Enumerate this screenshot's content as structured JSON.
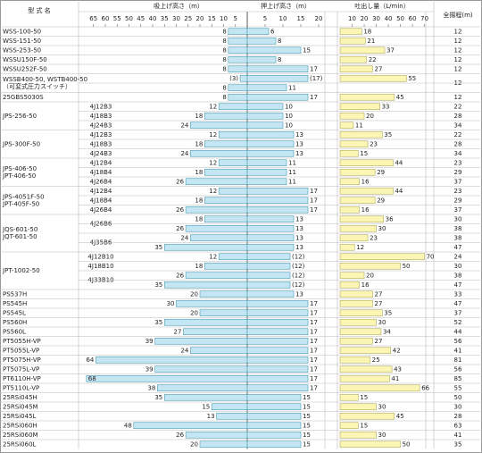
{
  "header": {
    "model": "型 式 名",
    "suction": "吸上げ高さ（m）",
    "push": "押上げ高さ（m）",
    "discharge": "吐出し量（L/min）",
    "total": "全揚程(m)"
  },
  "suction_lim": [
    0,
    70
  ],
  "suction_ticks": [
    65,
    60,
    55,
    50,
    45,
    40,
    35,
    30,
    25,
    20,
    15,
    10,
    5
  ],
  "push_lim": [
    0,
    21
  ],
  "push_ticks": [
    5,
    10,
    15,
    20
  ],
  "discharge_lim": [
    0,
    74
  ],
  "discharge_ticks": [
    10,
    20,
    30,
    40,
    50,
    60,
    70
  ],
  "rows": [
    {
      "model": [
        "WSS-100-50"
      ],
      "suction": 8,
      "push": 6,
      "discharge": 18,
      "total": 12
    },
    {
      "model": [
        "WSS-151-50"
      ],
      "suction": 8,
      "push": 8,
      "discharge": 21,
      "total": 12
    },
    {
      "model": [
        "WSS-253-50"
      ],
      "suction": 8,
      "push": 15,
      "discharge": 37,
      "total": 12
    },
    {
      "model": [
        "WSSU150F-50"
      ],
      "suction": 8,
      "push": 8,
      "discharge": 22,
      "total": 12
    },
    {
      "model": [
        "WSSU252F-50"
      ],
      "suction": 8,
      "push": 17,
      "discharge": 27,
      "total": 12
    },
    {
      "model": [
        "WSSB400-50, WSTB400-50",
        "（可変式圧力スイッチ）"
      ],
      "suction": 3,
      "suction_label": "(3)",
      "push": 17,
      "push_label": "(17)",
      "discharge": 55,
      "total": 12
    },
    {
      "suction": 8,
      "push": 11
    },
    {
      "model": [
        "25GBS5030S"
      ],
      "suction": 8,
      "push": 17,
      "discharge": 45,
      "total": 12
    },
    {
      "model": [
        "JPS-256-50"
      ],
      "sub": "4J12B3",
      "suction": 12,
      "push": 10,
      "discharge": 33,
      "total": 22
    },
    {
      "sub": "4J18B3",
      "suction": 18,
      "push": 10,
      "discharge": 20,
      "total": 28
    },
    {
      "sub": "4J24B3",
      "suction": 24,
      "push": 10,
      "discharge": 11,
      "total": 34
    },
    {
      "model": [
        "JPS-300F-50"
      ],
      "sub": "4J12B3",
      "suction": 12,
      "push": 13,
      "discharge": 35,
      "total": 22
    },
    {
      "sub": "4J18B3",
      "suction": 18,
      "push": 13,
      "discharge": 23,
      "total": 28
    },
    {
      "sub": "4J24B3",
      "suction": 24,
      "push": 13,
      "discharge": 15,
      "total": 34
    },
    {
      "model": [
        "JPS-406-50",
        "JPT-406-50"
      ],
      "sub": "4J12B4",
      "suction": 12,
      "push": 11,
      "discharge": 44,
      "total": 23
    },
    {
      "sub": "4J18B4",
      "suction": 18,
      "push": 11,
      "discharge": 29,
      "total": 29
    },
    {
      "sub": "4J26B4",
      "suction": 26,
      "push": 11,
      "discharge": 16,
      "total": 37
    },
    {
      "model": [
        "JPS-4051F-50",
        "JPT-405F-50"
      ],
      "sub": "4J12B4",
      "suction": 12,
      "push": 17,
      "discharge": 44,
      "total": 23
    },
    {
      "sub": "4J18B4",
      "suction": 18,
      "push": 17,
      "discharge": 29,
      "total": 29
    },
    {
      "sub": "4J26B4",
      "suction": 26,
      "push": 17,
      "discharge": 16,
      "total": 37
    },
    {
      "model": [
        "JQS-601-50",
        "JQT-601-50"
      ],
      "sub": "4J26B6",
      "suction": 18,
      "push": 13,
      "discharge": 36,
      "total": 30
    },
    {
      "suction": 26,
      "push": 13,
      "discharge": 30,
      "total": 38
    },
    {
      "sub": "4J35B6",
      "suction": 24,
      "push": 13,
      "discharge": 23,
      "total": 38
    },
    {
      "suction": 35,
      "push": 13,
      "discharge": 12,
      "total": 47
    },
    {
      "model": [
        "JPT-1002-50"
      ],
      "sub": "4J12B10",
      "suction": 12,
      "push": 12,
      "push_label": "(12)",
      "discharge": 70,
      "total": 24
    },
    {
      "sub": "4J18B10",
      "suction": 18,
      "push": 12,
      "push_label": "(12)",
      "discharge": 50,
      "total": 30
    },
    {
      "sub": "4J33B10",
      "suction": 26,
      "push": 12,
      "push_label": "(12)",
      "discharge": 20,
      "total": 38
    },
    {
      "suction": 35,
      "push": 12,
      "push_label": "(12)",
      "discharge": 16,
      "total": 47
    },
    {
      "model": [
        "PS537H"
      ],
      "suction": 20,
      "push": 13,
      "discharge": 27,
      "total": 33
    },
    {
      "model": [
        "PS545H"
      ],
      "suction": 30,
      "push": 17,
      "discharge": 27,
      "total": 47
    },
    {
      "model": [
        "PS545L"
      ],
      "suction": 20,
      "push": 17,
      "discharge": 35,
      "total": 37
    },
    {
      "model": [
        "PS560H"
      ],
      "suction": 35,
      "push": 17,
      "discharge": 30,
      "total": 52
    },
    {
      "model": [
        "PS560L"
      ],
      "suction": 27,
      "push": 17,
      "discharge": 34,
      "total": 44
    },
    {
      "model": [
        "PT5055H-VP"
      ],
      "suction": 39,
      "push": 17,
      "discharge": 27,
      "total": 56
    },
    {
      "model": [
        "PT5055L-VP"
      ],
      "suction": 24,
      "push": 17,
      "discharge": 42,
      "total": 41
    },
    {
      "model": [
        "PT5075H-VP"
      ],
      "suction": 64,
      "push": 17,
      "discharge": 25,
      "total": 81
    },
    {
      "model": [
        "PT5075L-VP"
      ],
      "suction": 39,
      "push": 17,
      "discharge": 43,
      "total": 56
    },
    {
      "model": [
        "PT6110H-VP"
      ],
      "suction": 68,
      "push": 17,
      "discharge": 41,
      "total": 85
    },
    {
      "model": [
        "PT5110L-VP"
      ],
      "suction": 38,
      "push": 17,
      "discharge": 66,
      "total": 55
    },
    {
      "model": [
        "25RSi045H"
      ],
      "suction": 35,
      "push": 15,
      "discharge": 15,
      "total": 50
    },
    {
      "model": [
        "25RSi045M"
      ],
      "suction": 15,
      "push": 15,
      "discharge": 30,
      "total": 30
    },
    {
      "model": [
        "25RSi045L"
      ],
      "suction": 13,
      "push": 15,
      "discharge": 45,
      "total": 28
    },
    {
      "model": [
        "25RSi060H"
      ],
      "suction": 48,
      "push": 15,
      "discharge": 15,
      "total": 63
    },
    {
      "model": [
        "25RSi060M"
      ],
      "suction": 26,
      "push": 15,
      "discharge": 30,
      "total": 41
    },
    {
      "model": [
        "25RSi060L"
      ],
      "suction": 20,
      "push": 15,
      "discharge": 50,
      "total": 35
    }
  ]
}
